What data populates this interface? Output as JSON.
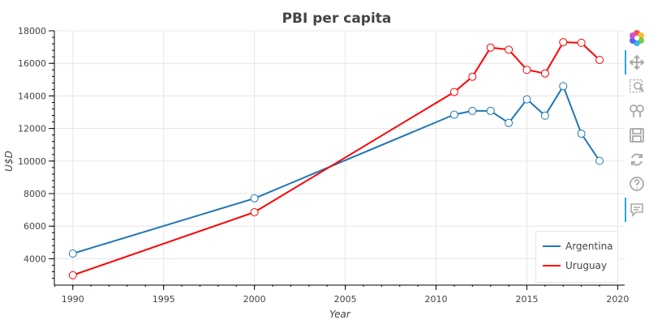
{
  "chart_data": {
    "type": "line",
    "title": "PBI per capita",
    "xlabel": "Year",
    "ylabel": "U$D",
    "xlim": [
      1988.983,
      2020.383
    ],
    "ylim": [
      2430,
      18000
    ],
    "x_ticks": [
      1990,
      1995,
      2000,
      2005,
      2010,
      2015,
      2020
    ],
    "y_ticks": [
      4000,
      6000,
      8000,
      10000,
      12000,
      14000,
      16000,
      18000
    ],
    "grid": true,
    "legend_position": "bottom-right",
    "series": [
      {
        "name": "Argentina",
        "color": "#1f77b4",
        "x": [
          1990,
          2000,
          2011,
          2012,
          2013,
          2014,
          2015,
          2016,
          2017,
          2018,
          2019
        ],
        "y": [
          4320,
          7710,
          12850,
          13080,
          13080,
          12340,
          13790,
          12790,
          14600,
          11680,
          10010
        ]
      },
      {
        "name": "Uruguay",
        "color": "#ff0000",
        "x": [
          1990,
          2000,
          2011,
          2012,
          2013,
          2014,
          2015,
          2016,
          2017,
          2018,
          2019
        ],
        "y": [
          2990,
          6860,
          14240,
          15180,
          16970,
          16840,
          15600,
          15380,
          17300,
          17260,
          16210
        ]
      }
    ]
  },
  "toolbar": {
    "tools": [
      {
        "name": "bokeh-logo-icon",
        "active": false
      },
      {
        "name": "pan-icon",
        "active": true
      },
      {
        "name": "box-zoom-icon",
        "active": false
      },
      {
        "name": "wheel-zoom-icon",
        "active": false
      },
      {
        "name": "save-icon",
        "active": false
      },
      {
        "name": "reset-icon",
        "active": false
      },
      {
        "name": "help-icon",
        "active": false
      },
      {
        "name": "hover-icon",
        "active": true
      }
    ]
  }
}
